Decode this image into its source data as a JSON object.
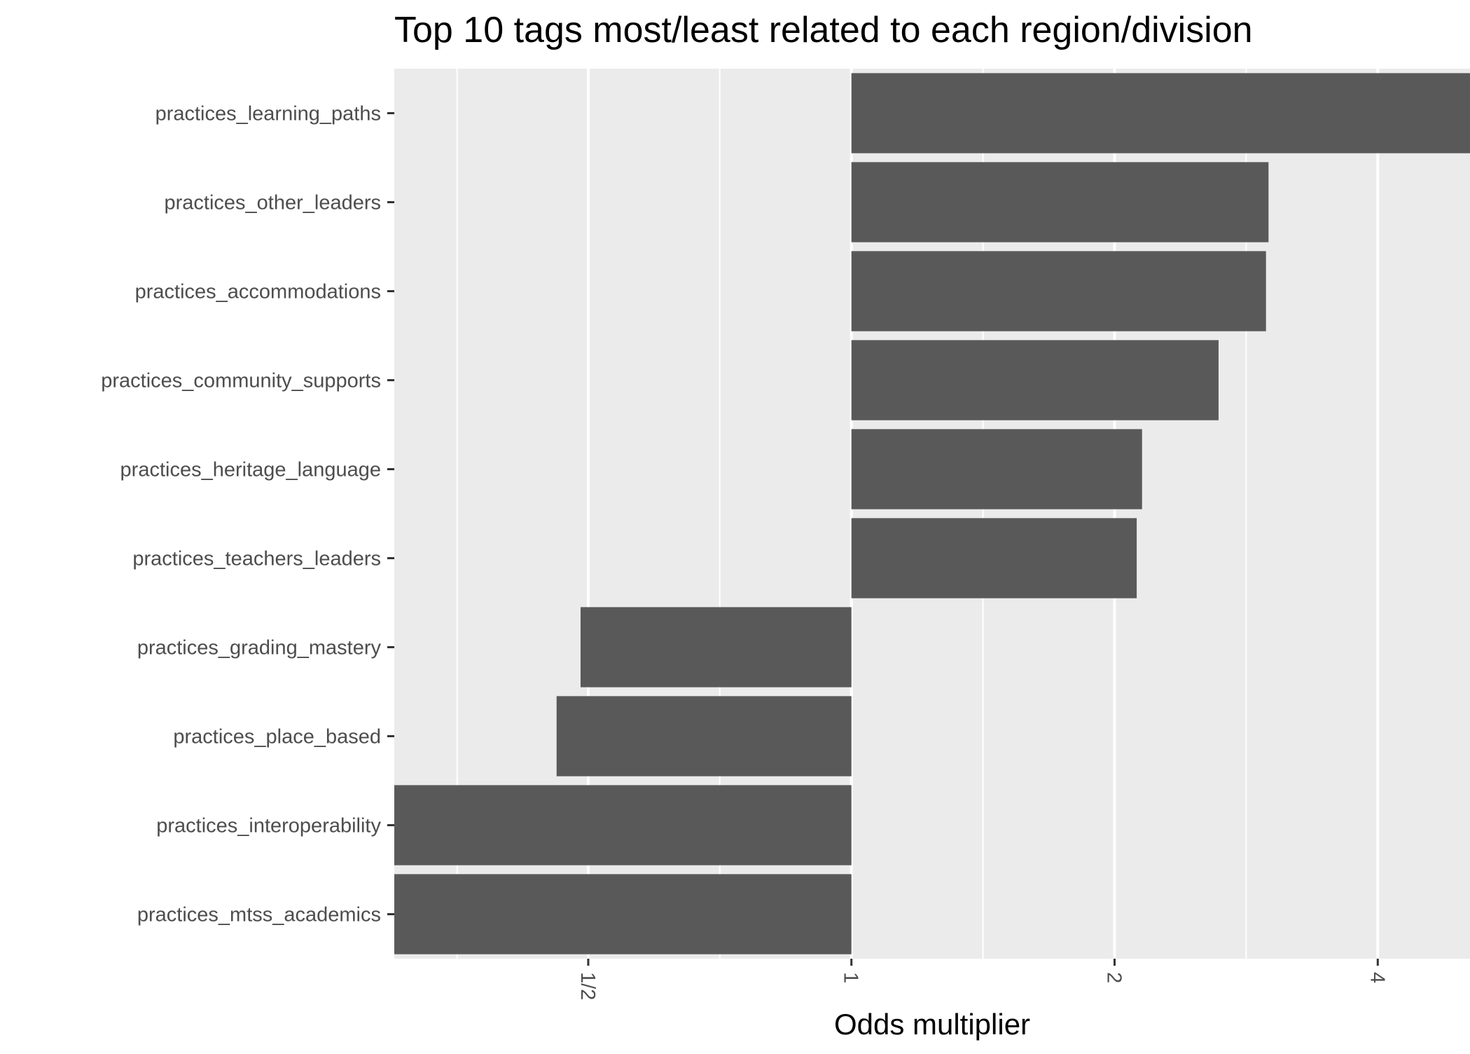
{
  "chart_data": {
    "type": "bar",
    "orientation": "horizontal",
    "title": "Top 10 tags most/least related to each region/division",
    "xlabel": "Odds multiplier",
    "ylabel": "",
    "x_scale": "log2",
    "xlim": [
      0.3,
      5.1
    ],
    "baseline": 1,
    "x_ticks": [
      {
        "value": 0.5,
        "label": "1/2"
      },
      {
        "value": 1,
        "label": "1"
      },
      {
        "value": 2,
        "label": "2"
      },
      {
        "value": 4,
        "label": "4"
      }
    ],
    "x_minor_gridlines": [
      0.354,
      0.707,
      1.414,
      2.828
    ],
    "categories": [
      "practices_learning_paths",
      "practices_other_leaders",
      "practices_accommodations",
      "practices_community_supports",
      "practices_heritage_language",
      "practices_teachers_leaders",
      "practices_grading_mastery",
      "practices_place_based",
      "practices_interoperability",
      "practices_mtss_academics"
    ],
    "values": [
      5.1,
      3.0,
      2.98,
      2.63,
      2.15,
      2.12,
      0.49,
      0.46,
      0.3,
      0.3
    ],
    "bar_color": "#595959",
    "panel_background": "#ebebeb",
    "grid_color": "#ffffff",
    "grid": true,
    "legend": "none"
  }
}
